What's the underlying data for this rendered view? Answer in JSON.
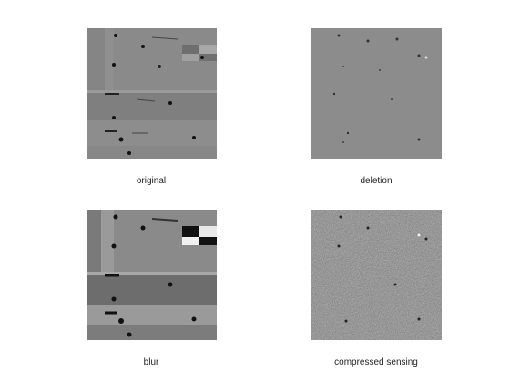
{
  "panels": [
    {
      "caption": "original"
    },
    {
      "caption": "deletion"
    },
    {
      "caption": "blur"
    },
    {
      "caption": "compressed sensing"
    }
  ]
}
